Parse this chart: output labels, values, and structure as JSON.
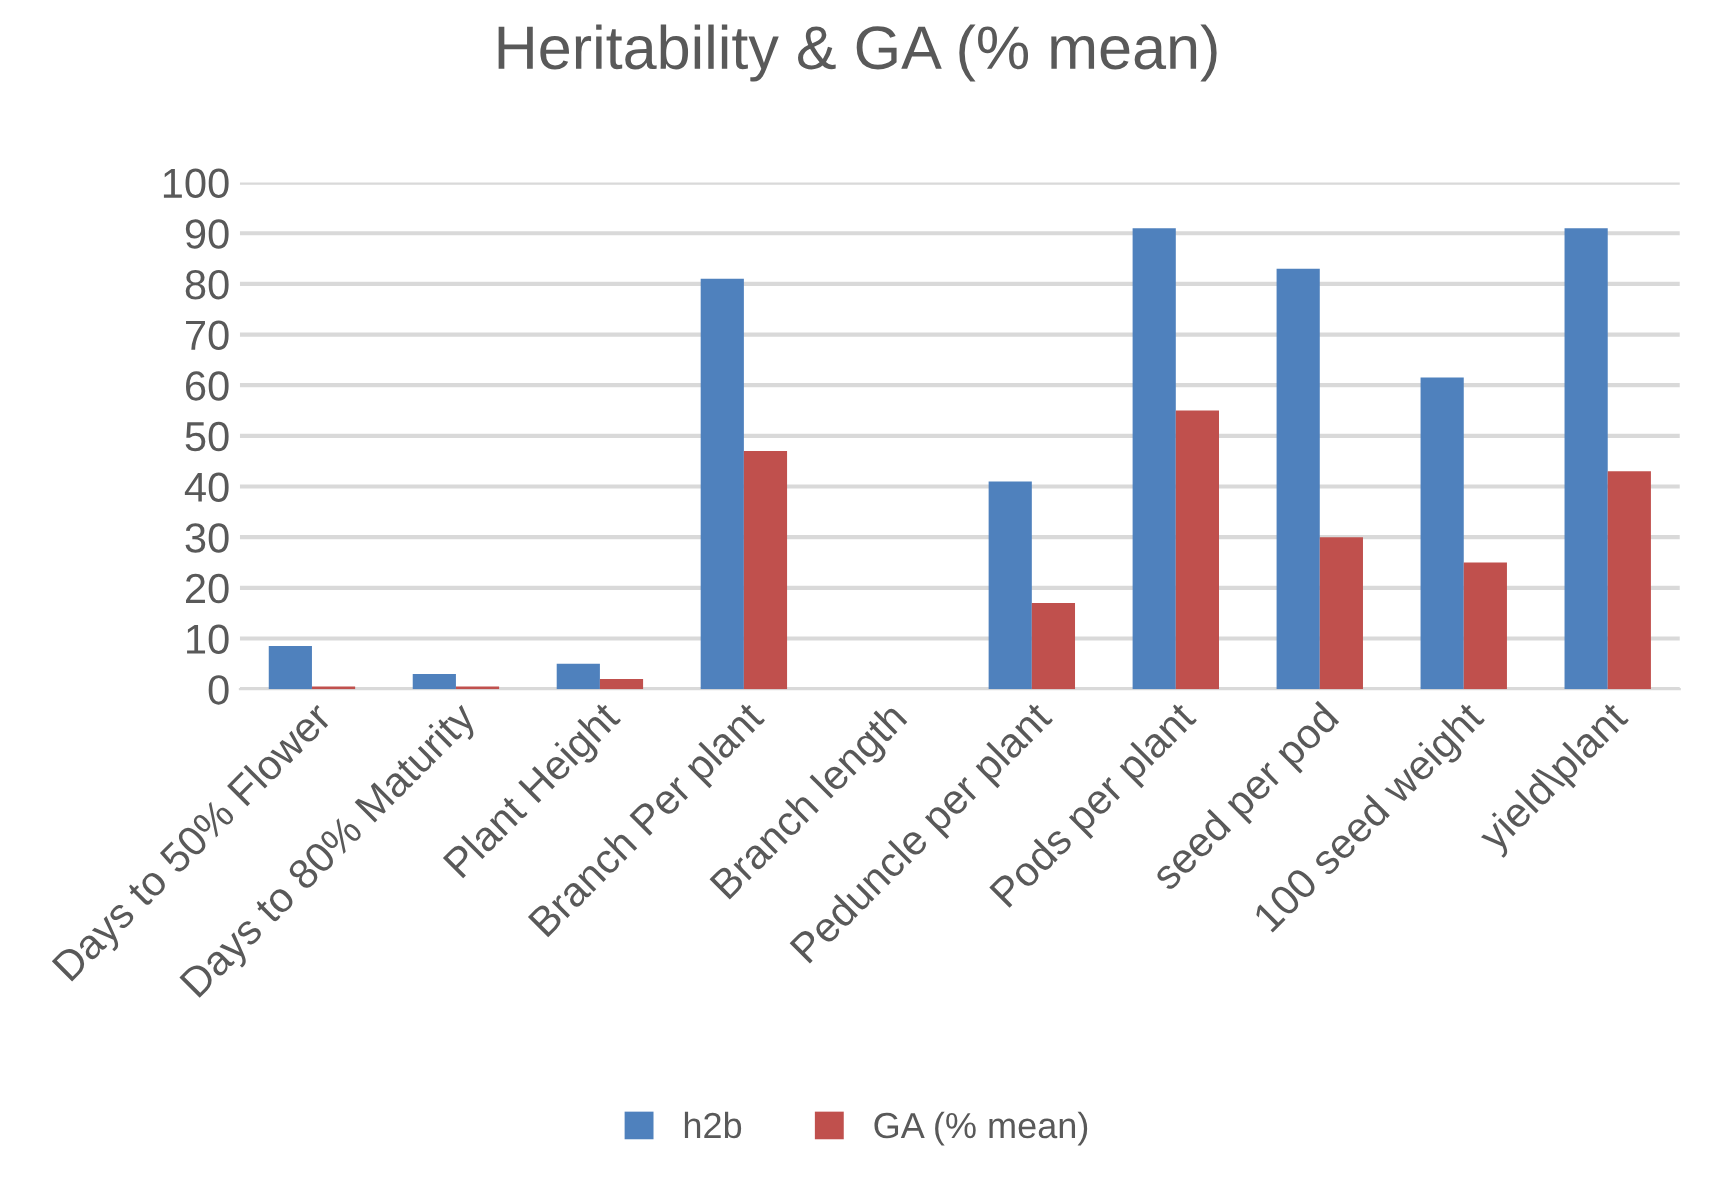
{
  "chart_data": {
    "type": "bar",
    "title": "Heritability & GA (% mean)",
    "categories": [
      "Days to 50% Flower",
      "Days to 80% Maturity",
      "Plant Height",
      "Branch Per plant",
      "Branch length",
      "Peduncle per plant",
      "Pods per plant",
      "seed per pod",
      "100 seed weight",
      "yield\\plant"
    ],
    "series": [
      {
        "name": "h2b",
        "color": "#4f81bd",
        "values": [
          8.5,
          3,
          5,
          81,
          0,
          41,
          91,
          83,
          61.5,
          91
        ]
      },
      {
        "name": "GA (% mean)",
        "color": "#c0504d",
        "values": [
          0.5,
          0.5,
          2,
          47,
          0,
          17,
          55,
          30,
          25,
          43
        ]
      }
    ],
    "ylim": [
      0,
      100
    ],
    "yticks": [
      0,
      10,
      20,
      30,
      40,
      50,
      60,
      70,
      80,
      90,
      100
    ],
    "grid": "y",
    "legend": "bottom"
  }
}
